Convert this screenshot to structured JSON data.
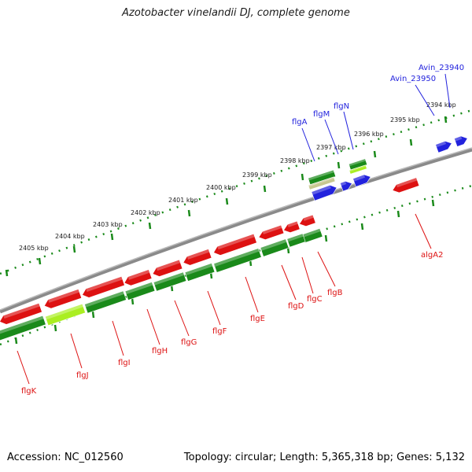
{
  "title": "Azotobacter vinelandii DJ, complete genome",
  "footer": {
    "accession": "Accession: NC_012560",
    "summary": "Topology: circular; Length: 5,365,318 bp; Genes: 5,132"
  },
  "colors": {
    "forward_gene": "#2222dd",
    "reverse_gene": "#dd1111",
    "cds": "#1a8a1a",
    "cds_highlight": "#aaee22",
    "backbone": "#777777",
    "ruler_tick": "#1a8a1a"
  },
  "scale_labels": [
    "2394 kbp",
    "2395 kbp",
    "2396 kbp",
    "2397 kbp",
    "2398 kbp",
    "2399 kbp",
    "2400 kbp",
    "2401 kbp",
    "2402 kbp",
    "2403 kbp",
    "2404 kbp",
    "2405 kbp"
  ],
  "outer_labels": [
    "Avin_23940",
    "Avin_23950",
    "flgN",
    "flgM",
    "flgA"
  ],
  "inner_labels": [
    "flgK",
    "flgJ",
    "flgI",
    "flgH",
    "flgG",
    "flgF",
    "flgE",
    "flgD",
    "flgC",
    "flgB",
    "algA2"
  ]
}
